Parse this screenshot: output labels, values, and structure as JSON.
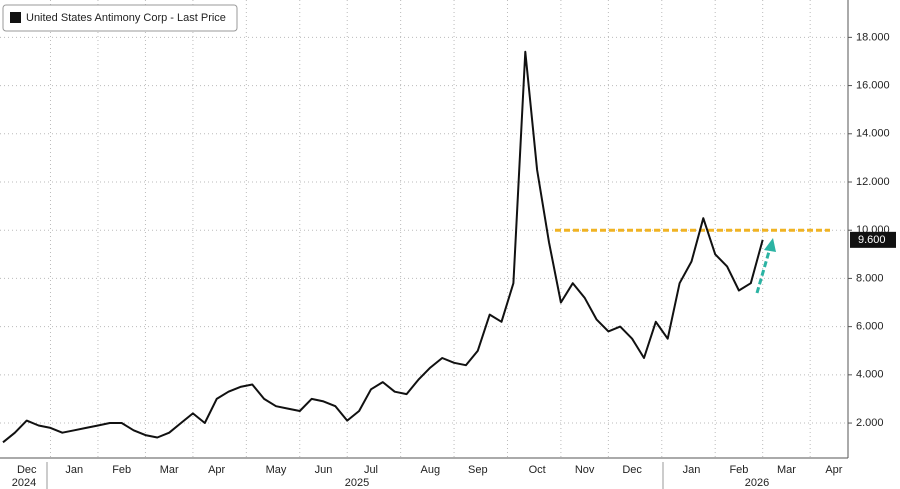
{
  "chart_data": {
    "type": "line",
    "categories": [
      null,
      null,
      "Dec",
      null,
      null,
      null,
      "Jan",
      null,
      null,
      null,
      "Feb",
      null,
      null,
      null,
      "Mar",
      null,
      null,
      null,
      "Apr",
      null,
      null,
      null,
      null,
      "May",
      null,
      null,
      null,
      "Jun",
      null,
      null,
      null,
      "Jul",
      null,
      null,
      null,
      null,
      "Aug",
      null,
      null,
      null,
      "Sep",
      null,
      null,
      null,
      null,
      "Oct",
      null,
      null,
      null,
      "Nov",
      null,
      null,
      null,
      "Dec",
      null,
      null,
      null,
      null,
      "Jan",
      null,
      null,
      null,
      "Feb",
      null,
      null,
      null,
      "Mar",
      null,
      null,
      null,
      "Apr",
      null
    ],
    "years": [
      "2024",
      "2025",
      "2026"
    ],
    "series": [
      {
        "name": "United States Antimony Corp - Last Price",
        "color": "#111111",
        "values": [
          1.2,
          1.6,
          2.1,
          1.9,
          1.8,
          1.6,
          1.7,
          1.8,
          1.9,
          2.0,
          2.0,
          1.7,
          1.5,
          1.4,
          1.6,
          2.0,
          2.4,
          2.0,
          3.0,
          3.3,
          3.5,
          3.6,
          3.0,
          2.7,
          2.6,
          2.5,
          3.0,
          2.9,
          2.7,
          2.1,
          2.5,
          3.4,
          3.7,
          3.3,
          3.2,
          3.8,
          4.3,
          4.7,
          4.5,
          4.4,
          5.0,
          6.5,
          6.2,
          7.8,
          17.4,
          12.5,
          9.5,
          7.0,
          7.8,
          7.2,
          6.3,
          5.8,
          6.0,
          5.5,
          4.7,
          6.2,
          5.5,
          7.8,
          8.7,
          10.5,
          9.0,
          8.5,
          7.5,
          7.8,
          9.6,
          null,
          null,
          null,
          null,
          null,
          null,
          null
        ]
      }
    ],
    "ylim": [
      0.55,
      19.55
    ],
    "yticks": [
      {
        "value": 2,
        "label": "2.000"
      },
      {
        "value": 4,
        "label": "4.000"
      },
      {
        "value": 6,
        "label": "6.000"
      },
      {
        "value": 8,
        "label": "8.000"
      },
      {
        "value": 10,
        "label": "10.000"
      },
      {
        "value": 12,
        "label": "12.000"
      },
      {
        "value": 14,
        "label": "14.000"
      },
      {
        "value": 16,
        "label": "16.000"
      },
      {
        "value": 18,
        "label": "18.000"
      }
    ],
    "grid": true,
    "reference_line": {
      "value": 10,
      "color": "#f0b323"
    },
    "last_price_label": {
      "value": 9.6,
      "label": "9.600"
    }
  }
}
